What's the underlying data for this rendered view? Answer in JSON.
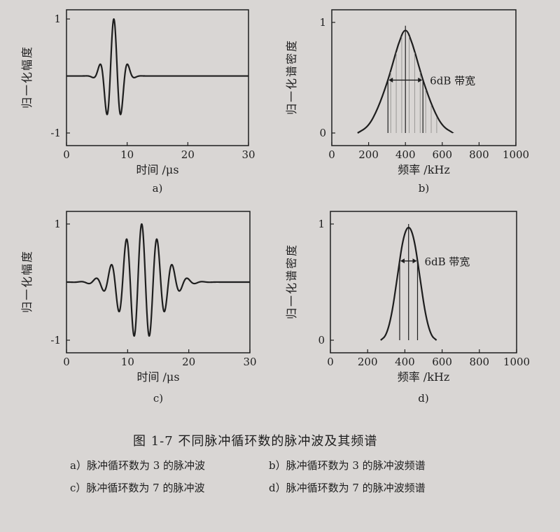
{
  "caption": {
    "title": "图 1-7   不同脉冲循环数的脉冲波及其频谱",
    "items": [
      "a）脉冲循环数为 3 的脉冲波",
      "b）脉冲循环数为 3 的脉冲波频谱",
      "c）脉冲循环数为 7 的脉冲波",
      "d）脉冲循环数为 7 的脉冲波频谱"
    ]
  },
  "chart_data": [
    {
      "id": "a",
      "type": "line",
      "sublabel": "a)",
      "xlabel": "时间 /μs",
      "ylabel": "归一化幅度",
      "xlim": [
        0,
        30
      ],
      "ylim": [
        -1,
        1
      ],
      "xticks": [
        0,
        10,
        20,
        30
      ],
      "yticks": [
        -1,
        1
      ],
      "ytick_labels": [
        "-1",
        "1"
      ],
      "grid": false,
      "signal": {
        "kind": "tone_burst",
        "cycles": 3,
        "center_us": 7.8,
        "period_us": 2.4,
        "sigma_us": 1.3,
        "duration_us": 30
      }
    },
    {
      "id": "b",
      "type": "line",
      "sublabel": "b)",
      "xlabel": "频率 /kHz",
      "ylabel": "归一化谱密度",
      "xlim": [
        0,
        1000
      ],
      "ylim": [
        0,
        1
      ],
      "xticks": [
        0,
        200,
        400,
        600,
        800,
        1000
      ],
      "yticks": [
        0,
        1
      ],
      "ytick_labels": [
        "0",
        "1"
      ],
      "grid": false,
      "annotation": "6dB 带宽",
      "peak": {
        "x": 400,
        "y": 0.97
      },
      "bandwidth_kHz": [
        305,
        495
      ],
      "series": [
        {
          "x": [
            140,
            200,
            250,
            300,
            330,
            360,
            400,
            440,
            470,
            500,
            550,
            600,
            660
          ],
          "y": [
            0.0,
            0.06,
            0.22,
            0.45,
            0.62,
            0.8,
            0.97,
            0.8,
            0.62,
            0.45,
            0.22,
            0.06,
            0.0
          ]
        }
      ]
    },
    {
      "id": "c",
      "type": "line",
      "sublabel": "c)",
      "xlabel": "时间 /μs",
      "ylabel": "归一化幅度",
      "xlim": [
        0,
        30
      ],
      "ylim": [
        -1,
        1
      ],
      "xticks": [
        0,
        10,
        20,
        30
      ],
      "yticks": [
        -1,
        1
      ],
      "ytick_labels": [
        "-1",
        "1"
      ],
      "grid": false,
      "signal": {
        "kind": "tone_burst",
        "cycles": 7,
        "center_us": 12.3,
        "period_us": 2.5,
        "sigma_us": 3.2,
        "duration_us": 30
      }
    },
    {
      "id": "d",
      "type": "line",
      "sublabel": "d)",
      "xlabel": "频率 /kHz",
      "ylabel": "归一化谱密度",
      "xlim": [
        0,
        1000
      ],
      "ylim": [
        0,
        1
      ],
      "xticks": [
        0,
        200,
        400,
        600,
        800,
        1000
      ],
      "yticks": [
        0,
        1
      ],
      "ytick_labels": [
        "0",
        "1"
      ],
      "grid": false,
      "annotation": "6dB 带宽",
      "peak": {
        "x": 420,
        "y": 1.0
      },
      "bandwidth_kHz": [
        372,
        468
      ],
      "series": [
        {
          "x": [
            270,
            300,
            330,
            360,
            390,
            420,
            450,
            480,
            510,
            540,
            570
          ],
          "y": [
            0.0,
            0.04,
            0.22,
            0.55,
            0.88,
            1.0,
            0.88,
            0.55,
            0.22,
            0.04,
            0.0
          ]
        }
      ]
    }
  ]
}
